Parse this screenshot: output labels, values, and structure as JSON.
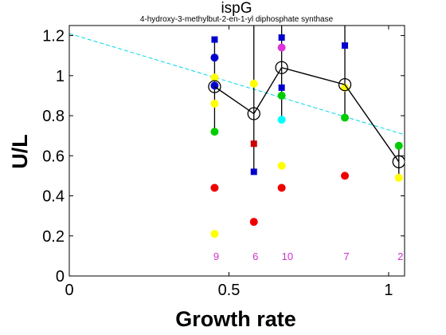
{
  "chart_data": {
    "type": "scatter",
    "title": "ispG",
    "subtitle": "4-hydroxy-3-methylbut-2-en-1-yl diphosphate synthase",
    "xlabel": "Growth rate",
    "ylabel": "U/L",
    "xlim": [
      0,
      1.05
    ],
    "ylim": [
      0,
      1.25
    ],
    "xticks": [
      0,
      0.5,
      1
    ],
    "xtick_labels": [
      "0",
      "0.5",
      "1"
    ],
    "yticks": [
      0,
      0.2,
      0.4,
      0.6,
      0.8,
      1.0,
      1.2
    ],
    "ytick_labels": [
      "0",
      "0.2",
      "0.4",
      "0.6",
      "0.8",
      "1",
      "1.2"
    ],
    "grid": false,
    "trend_line": {
      "x": [
        0,
        1.05
      ],
      "y": [
        1.21,
        0.705
      ],
      "color": "#00d8e8",
      "style": "dashed"
    },
    "mean_line": {
      "x": [
        0.455,
        0.578,
        0.665,
        0.863,
        1.032
      ],
      "y": [
        0.945,
        0.81,
        1.04,
        0.955,
        0.57
      ],
      "err_low": [
        0.72,
        0.52,
        0.78,
        0.79,
        0.5
      ],
      "err_high": [
        1.18,
        1.26,
        1.26,
        1.26,
        0.65
      ],
      "color": "#000000"
    },
    "sample_counts": {
      "x": [
        0.455,
        0.578,
        0.678,
        0.863,
        1.032
      ],
      "labels": [
        "9",
        "6",
        "10",
        "7",
        "2"
      ],
      "y": 0.1,
      "color": "#cc33cc"
    },
    "points": [
      {
        "x": 0.455,
        "y": 1.18,
        "color": "#0000cc",
        "shape": "square"
      },
      {
        "x": 0.455,
        "y": 1.09,
        "color": "#0000cc",
        "shape": "circle"
      },
      {
        "x": 0.455,
        "y": 0.99,
        "color": "#ffff00",
        "shape": "circle"
      },
      {
        "x": 0.455,
        "y": 0.95,
        "color": "#0000cc",
        "shape": "circle"
      },
      {
        "x": 0.455,
        "y": 0.86,
        "color": "#ffff00",
        "shape": "circle"
      },
      {
        "x": 0.455,
        "y": 0.72,
        "color": "#00cc00",
        "shape": "circle"
      },
      {
        "x": 0.455,
        "y": 0.44,
        "color": "#ee0000",
        "shape": "circle"
      },
      {
        "x": 0.455,
        "y": 0.21,
        "color": "#ffff00",
        "shape": "circle"
      },
      {
        "x": 0.578,
        "y": 0.96,
        "color": "#ffff00",
        "shape": "circle"
      },
      {
        "x": 0.578,
        "y": 0.66,
        "color": "#cc0000",
        "shape": "square"
      },
      {
        "x": 0.578,
        "y": 0.52,
        "color": "#0000cc",
        "shape": "square"
      },
      {
        "x": 0.578,
        "y": 0.27,
        "color": "#ee0000",
        "shape": "circle"
      },
      {
        "x": 0.665,
        "y": 1.19,
        "color": "#0000cc",
        "shape": "square"
      },
      {
        "x": 0.665,
        "y": 1.14,
        "color": "#dd33dd",
        "shape": "circle"
      },
      {
        "x": 0.665,
        "y": 0.94,
        "color": "#0000cc",
        "shape": "square"
      },
      {
        "x": 0.665,
        "y": 0.9,
        "color": "#00cc00",
        "shape": "circle"
      },
      {
        "x": 0.665,
        "y": 0.78,
        "color": "#00ffff",
        "shape": "circle"
      },
      {
        "x": 0.665,
        "y": 0.55,
        "color": "#ffff00",
        "shape": "circle"
      },
      {
        "x": 0.665,
        "y": 0.44,
        "color": "#ee0000",
        "shape": "circle"
      },
      {
        "x": 0.863,
        "y": 1.15,
        "color": "#0000cc",
        "shape": "square"
      },
      {
        "x": 0.863,
        "y": 0.94,
        "color": "#ffff00",
        "shape": "circle"
      },
      {
        "x": 0.863,
        "y": 0.79,
        "color": "#00cc00",
        "shape": "circle"
      },
      {
        "x": 0.863,
        "y": 0.5,
        "color": "#ee0000",
        "shape": "circle"
      },
      {
        "x": 1.032,
        "y": 0.65,
        "color": "#00cc00",
        "shape": "circle"
      },
      {
        "x": 1.032,
        "y": 0.49,
        "color": "#ffff00",
        "shape": "circle"
      }
    ]
  }
}
